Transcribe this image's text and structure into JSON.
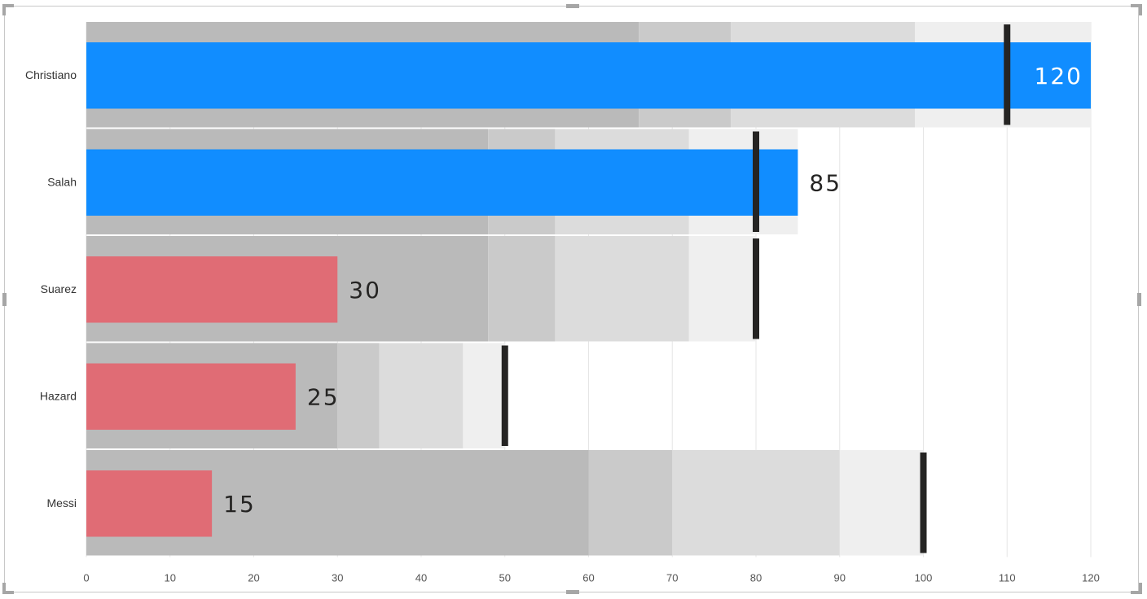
{
  "chart_data": {
    "type": "bar",
    "subtype": "bullet",
    "orientation": "horizontal",
    "categories": [
      "Christiano",
      "Salah",
      "Suarez",
      "Hazard",
      "Messi"
    ],
    "values": [
      120,
      85,
      30,
      25,
      15
    ],
    "targets": [
      110,
      80,
      80,
      50,
      100
    ],
    "bands": [
      [
        66,
        77,
        99,
        120
      ],
      [
        48,
        56,
        72,
        85
      ],
      [
        48,
        56,
        72,
        80
      ],
      [
        30,
        35,
        45,
        50
      ],
      [
        60,
        70,
        90,
        100
      ]
    ],
    "bar_colors": [
      "#118dff",
      "#118dff",
      "#e06c75",
      "#e06c75",
      "#e06c75"
    ],
    "band_colors": [
      "#bababa",
      "#cacaca",
      "#dcdcdc",
      "#efefef"
    ],
    "target_color": "#252423",
    "data_label_colors": [
      "#ffffff",
      "#252423",
      "#252423",
      "#252423",
      "#252423"
    ],
    "data_labels": [
      "120",
      "85",
      "30",
      "25",
      "15"
    ],
    "xlim": [
      0,
      120
    ],
    "xticks": [
      0,
      10,
      20,
      30,
      40,
      50,
      60,
      70,
      80,
      90,
      100,
      110,
      120
    ],
    "grid": true,
    "title": "",
    "xlabel": "",
    "ylabel": ""
  }
}
